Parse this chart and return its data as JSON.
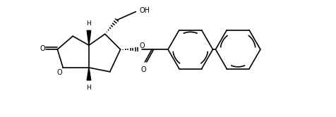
{
  "background": "#ffffff",
  "line_color": "#000000",
  "lw": 1.2,
  "figsize": [
    4.76,
    1.66
  ],
  "dpi": 100,
  "xlim": [
    0,
    47.6
  ],
  "ylim": [
    0,
    16.6
  ]
}
